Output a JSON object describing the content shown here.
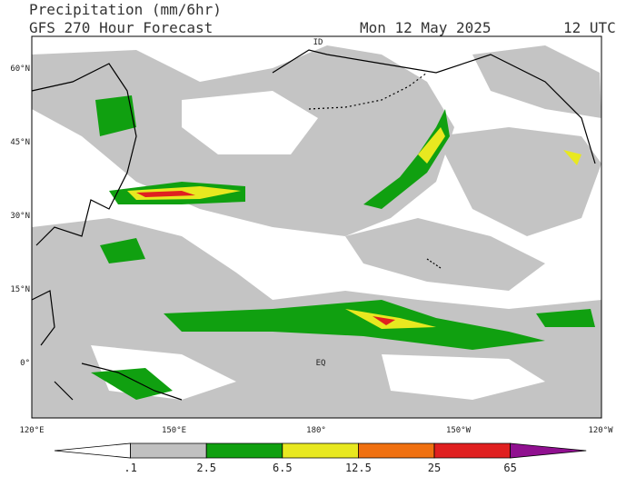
{
  "header": {
    "title": "Precipitation (mm/6hr)",
    "subtitle": "GFS 270 Hour Forecast",
    "date": "Mon 12 May 2025",
    "time": "12 UTC"
  },
  "map": {
    "lat_labels": [
      "60°N",
      "45°N",
      "30°N",
      "15°N",
      "0°"
    ],
    "lon_labels": [
      "120°E",
      "150°E",
      "180°",
      "150°W",
      "120°W"
    ],
    "place_labels": [
      "ID",
      "EQ"
    ]
  },
  "colorbar": {
    "labels": [
      ".1",
      "2.5",
      "6.5",
      "12.5",
      "25",
      "65"
    ],
    "colors": [
      "#ffffff",
      "#c0c0c0",
      "#10a010",
      "#e8e820",
      "#f07010",
      "#e02020",
      "#901090"
    ]
  }
}
